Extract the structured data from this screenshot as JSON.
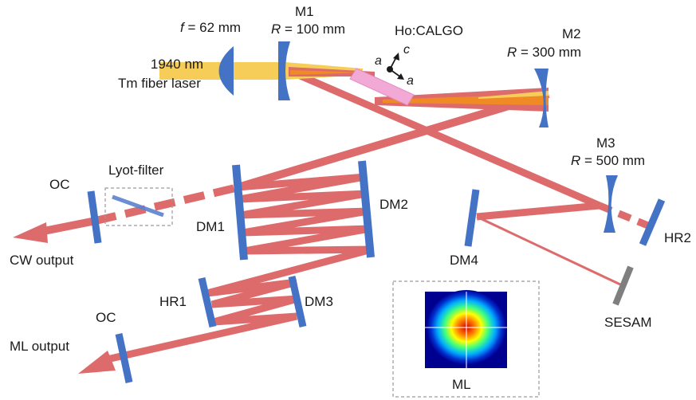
{
  "colors": {
    "beam_pump": "#f7cd5a",
    "beam_pump_focus": "#f08a24",
    "beam_laser": "#dd6b6b",
    "optic": "#4472c4",
    "crystal": "#f2a9d6",
    "sesam": "#7f7f7f",
    "frame": "#9a9a9a"
  },
  "labels": {
    "lens_f_symbol": "f",
    "lens_f_value": " = 62 mm",
    "pump_line1": "1940 nm",
    "pump_line2": "Tm fiber laser",
    "m1_name": "M1",
    "m1_r_symbol": "R",
    "m1_r_value": " = 100 mm",
    "crystal_name": "Ho:CALGO",
    "axis_a1": "a",
    "axis_c": "c",
    "axis_a2": "a",
    "m2_name": "M2",
    "m2_r_symbol": "R",
    "m2_r_value": " = 300 mm",
    "m3_name": "M3",
    "m3_r_symbol": "R",
    "m3_r_value": " = 500 mm",
    "lyot": "Lyot-filter",
    "oc_cw": "OC",
    "dm1": "DM1",
    "dm2": "DM2",
    "dm4": "DM4",
    "hr2": "HR2",
    "cw_output": "CW output",
    "hr1": "HR1",
    "dm3": "DM3",
    "oc_ml": "OC",
    "ml_output": "ML output",
    "sesam": "SESAM",
    "ml_inset": "ML"
  }
}
